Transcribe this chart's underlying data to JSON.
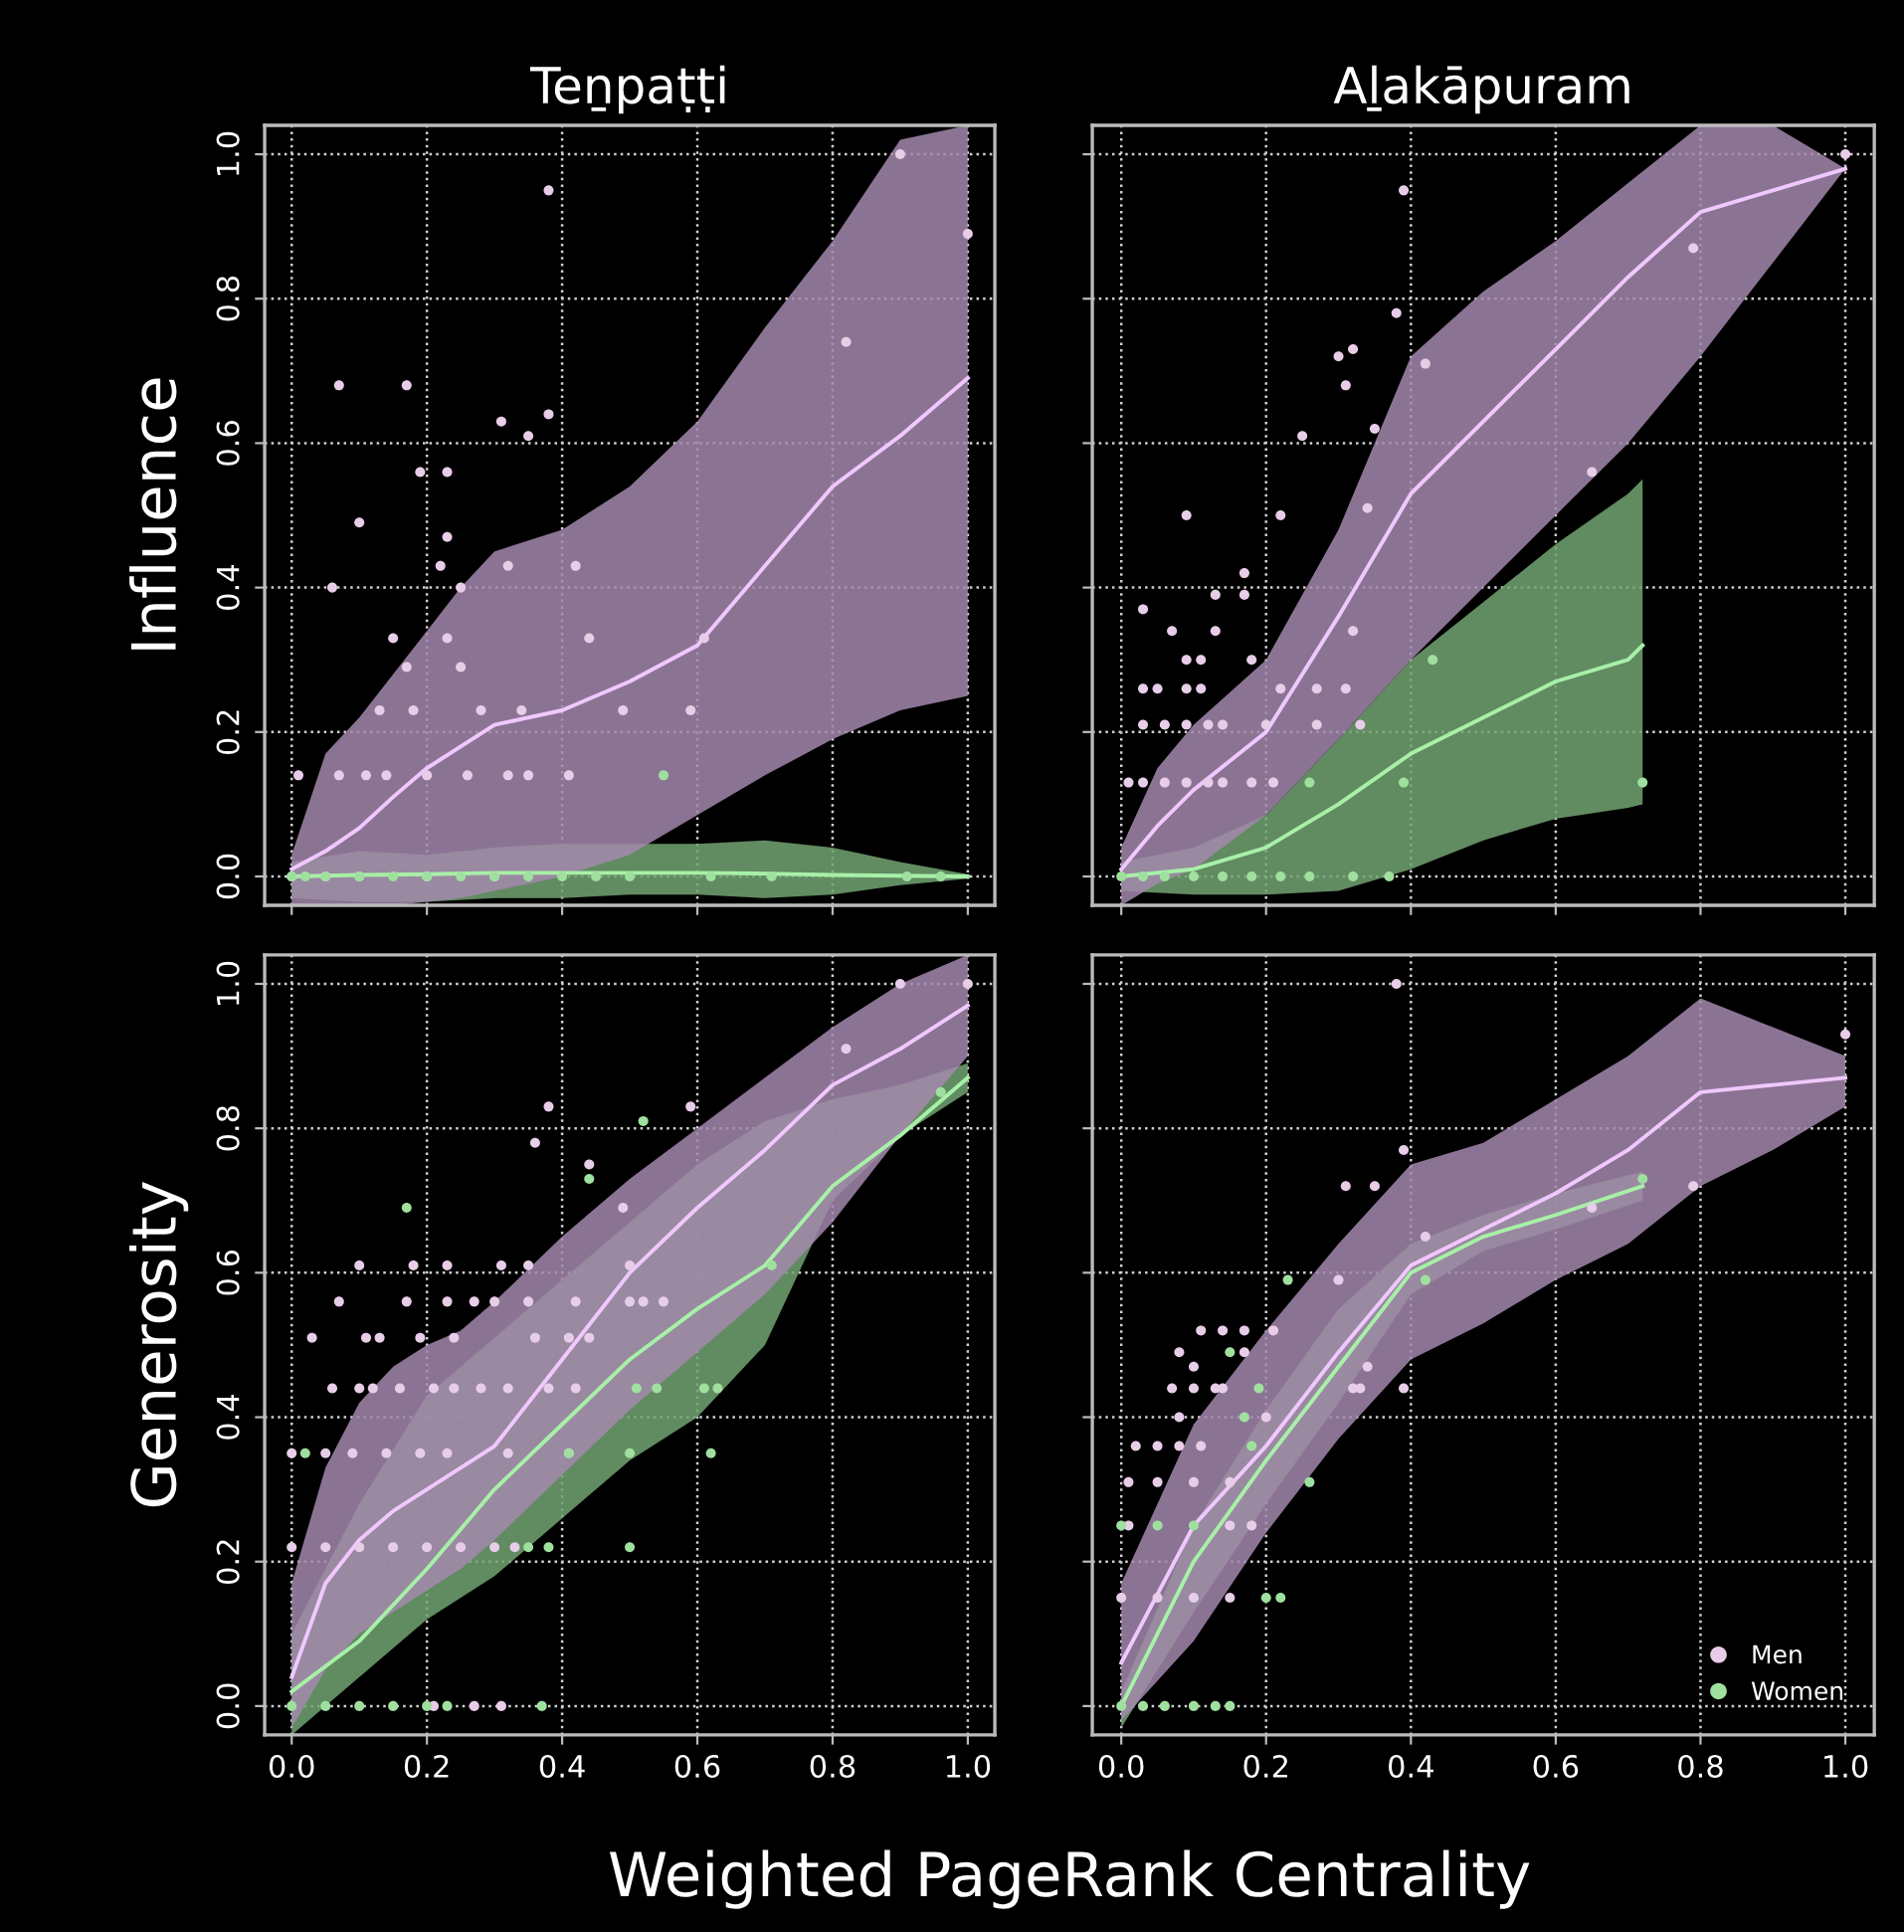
{
  "chart_data": [
    {
      "type": "scatter",
      "title": "Teṉpaṭṭi",
      "ylabel": "Influence",
      "xlim": [
        -0.04,
        1.04
      ],
      "ylim": [
        -0.04,
        1.04
      ],
      "xticks": [
        {
          "value": 0,
          "label": null
        },
        {
          "value": 0.2,
          "label": null
        },
        {
          "value": 0.4,
          "label": null
        },
        {
          "value": 0.6,
          "label": null
        },
        {
          "value": 0.8,
          "label": null
        },
        {
          "value": 1,
          "label": null
        }
      ],
      "yticks": [
        {
          "value": 0,
          "label": "0.0"
        },
        {
          "value": 0.2,
          "label": "0.2"
        },
        {
          "value": 0.4,
          "label": "0.4"
        },
        {
          "value": 0.6,
          "label": "0.6"
        },
        {
          "value": 0.8,
          "label": "0.8"
        },
        {
          "value": 1,
          "label": "1.0"
        }
      ],
      "tick_labels": "y",
      "grid": true,
      "marker": "circle",
      "line_style": "solid",
      "series": [
        {
          "type": "line",
          "marker": "none",
          "color": "#a8f0a8",
          "x": [
            0,
            0.1,
            0.2,
            0.3,
            0.4,
            0.5,
            0.6,
            0.7,
            0.8,
            0.9,
            1.0
          ],
          "values": [
            0,
            0.002,
            0.003,
            0.005,
            0.005,
            0.005,
            0.005,
            0.004,
            0.002,
            0.001,
            0
          ],
          "upper": [
            0.02,
            0.035,
            0.03,
            0.04,
            0.045,
            0.045,
            0.045,
            0.05,
            0.04,
            0.02,
            0.003
          ],
          "lower": [
            -0.03,
            -0.035,
            -0.035,
            -0.03,
            -0.03,
            -0.025,
            -0.025,
            -0.03,
            -0.025,
            -0.012,
            -0.003
          ]
        },
        {
          "type": "line",
          "marker": "none",
          "color": "#f0c8ff",
          "x": [
            0,
            0.05,
            0.1,
            0.15,
            0.2,
            0.25,
            0.3,
            0.4,
            0.5,
            0.6,
            0.7,
            0.8,
            0.9,
            1.0
          ],
          "values": [
            0.01,
            0.035,
            0.067,
            0.11,
            0.15,
            0.18,
            0.21,
            0.23,
            0.27,
            0.32,
            0.43,
            0.54,
            0.61,
            0.69
          ],
          "upper": [
            0.03,
            0.17,
            0.22,
            0.28,
            0.34,
            0.4,
            0.45,
            0.48,
            0.54,
            0.63,
            0.76,
            0.88,
            1.02,
            1.04
          ],
          "lower": [
            -0.04,
            -0.04,
            -0.04,
            -0.04,
            -0.035,
            -0.03,
            -0.02,
            0,
            0.03,
            0.085,
            0.14,
            0.19,
            0.23,
            0.25
          ]
        },
        {
          "color": "#e8cde8",
          "x": [
            0.07,
            0.17,
            0.38,
            0.31,
            0.35,
            0.38,
            0.1,
            0.19,
            0.23,
            0.23,
            0.22,
            0.25,
            0.06,
            0.32,
            0.42,
            0.15,
            0.23,
            0.44,
            0.17,
            0.25,
            0.13,
            0.18,
            0.28,
            0.34,
            0.49,
            0.59,
            0.61,
            0.82,
            0.9,
            1.0,
            0.01,
            0.07,
            0.11,
            0.14,
            0.2,
            0.26,
            0.32,
            0.35,
            0.41,
            0,
            0.05,
            0.1,
            0.2,
            0.3
          ],
          "values": [
            0.68,
            0.68,
            0.95,
            0.63,
            0.61,
            0.64,
            0.49,
            0.56,
            0.56,
            0.47,
            0.43,
            0.4,
            0.4,
            0.43,
            0.43,
            0.33,
            0.33,
            0.33,
            0.29,
            0.29,
            0.23,
            0.23,
            0.23,
            0.23,
            0.23,
            0.23,
            0.33,
            0.74,
            1.0,
            0.89,
            0.14,
            0.14,
            0.14,
            0.14,
            0.14,
            0.14,
            0.14,
            0.14,
            0.14,
            0,
            0,
            0,
            0,
            0
          ]
        },
        {
          "color": "#9fe09f",
          "x": [
            0,
            0.02,
            0.05,
            0.1,
            0.15,
            0.2,
            0.25,
            0.3,
            0.35,
            0.4,
            0.45,
            0.5,
            0.62,
            0.71,
            0.91,
            0.55,
            0.96
          ],
          "values": [
            0,
            0,
            0,
            0,
            0,
            0,
            0,
            0,
            0,
            0,
            0,
            0,
            0,
            0,
            0,
            0.14,
            0
          ]
        }
      ]
    },
    {
      "type": "scatter",
      "title": "Aḻakāpuram",
      "xlim": [
        -0.04,
        1.04
      ],
      "ylim": [
        -0.04,
        1.04
      ],
      "xticks": [
        {
          "value": 0,
          "label": null
        },
        {
          "value": 0.2,
          "label": null
        },
        {
          "value": 0.4,
          "label": null
        },
        {
          "value": 0.6,
          "label": null
        },
        {
          "value": 0.8,
          "label": null
        },
        {
          "value": 1,
          "label": null
        }
      ],
      "yticks": [
        {
          "value": 0,
          "label": null
        },
        {
          "value": 0.2,
          "label": null
        },
        {
          "value": 0.4,
          "label": null
        },
        {
          "value": 0.6,
          "label": null
        },
        {
          "value": 0.8,
          "label": null
        },
        {
          "value": 1,
          "label": null
        }
      ],
      "tick_labels": false,
      "grid": true,
      "marker": "circle",
      "line_style": "solid",
      "series": [
        {
          "type": "line",
          "marker": "none",
          "color": "#a8f0a8",
          "x": [
            0,
            0.1,
            0.2,
            0.3,
            0.4,
            0.5,
            0.6,
            0.7,
            0.72
          ],
          "values": [
            0,
            0.01,
            0.04,
            0.1,
            0.17,
            0.22,
            0.27,
            0.3,
            0.32
          ],
          "upper": [
            0.02,
            0.04,
            0.085,
            0.19,
            0.3,
            0.38,
            0.46,
            0.53,
            0.55
          ],
          "lower": [
            -0.02,
            -0.025,
            -0.025,
            -0.02,
            0.01,
            0.05,
            0.08,
            0.095,
            0.1
          ]
        },
        {
          "type": "line",
          "marker": "none",
          "color": "#f0c8ff",
          "x": [
            0,
            0.05,
            0.1,
            0.2,
            0.3,
            0.4,
            0.5,
            0.6,
            0.7,
            0.8,
            0.9,
            1.0
          ],
          "values": [
            0.01,
            0.07,
            0.12,
            0.2,
            0.36,
            0.53,
            0.63,
            0.73,
            0.83,
            0.92,
            0.95,
            0.98
          ],
          "upper": [
            0.04,
            0.15,
            0.21,
            0.3,
            0.48,
            0.72,
            0.81,
            0.88,
            0.96,
            1.04,
            1.04,
            0.98
          ],
          "lower": [
            -0.04,
            -0.01,
            0.01,
            0.085,
            0.19,
            0.3,
            0.4,
            0.5,
            0.6,
            0.72,
            0.85,
            0.98
          ]
        },
        {
          "color": "#e8cde8",
          "x": [
            0.39,
            0.38,
            0.3,
            0.32,
            0.31,
            0.42,
            0.35,
            0.25,
            0.09,
            0.22,
            0.34,
            0.17,
            0.13,
            0.17,
            0.03,
            0.07,
            0.13,
            0.09,
            0.11,
            0.32,
            0.18,
            0.03,
            0.05,
            0.09,
            0.11,
            0.22,
            0.27,
            0.31,
            0.03,
            0.06,
            0.09,
            0.12,
            0.14,
            0.2,
            0.27,
            0.33,
            0.01,
            0.03,
            0.06,
            0.09,
            0.12,
            0.14,
            0.18,
            0.21,
            1.0,
            0.79,
            0.65
          ],
          "values": [
            0.95,
            0.78,
            0.72,
            0.73,
            0.68,
            0.71,
            0.62,
            0.61,
            0.5,
            0.5,
            0.51,
            0.42,
            0.39,
            0.39,
            0.37,
            0.34,
            0.34,
            0.3,
            0.3,
            0.34,
            0.3,
            0.26,
            0.26,
            0.26,
            0.26,
            0.26,
            0.26,
            0.26,
            0.21,
            0.21,
            0.21,
            0.21,
            0.21,
            0.21,
            0.21,
            0.21,
            0.13,
            0.13,
            0.13,
            0.13,
            0.13,
            0.13,
            0.13,
            0.13,
            1.0,
            0.87,
            0.56
          ]
        },
        {
          "color": "#9fe09f",
          "x": [
            0.43,
            0.39,
            0.72,
            0.26,
            0.32,
            0.37,
            0,
            0.03,
            0.06,
            0.1,
            0.14,
            0.18,
            0.22,
            0.26
          ],
          "values": [
            0.3,
            0.13,
            0.13,
            0.13,
            0,
            0,
            0,
            0,
            0,
            0,
            0,
            0,
            0,
            0
          ]
        }
      ]
    },
    {
      "type": "scatter",
      "ylabel": "Generosity",
      "xlabel": "Weighted PageRank Centrality",
      "xlim": [
        -0.04,
        1.04
      ],
      "ylim": [
        -0.04,
        1.04
      ],
      "xticks": [
        {
          "value": 0,
          "label": "0.0"
        },
        {
          "value": 0.2,
          "label": "0.2"
        },
        {
          "value": 0.4,
          "label": "0.4"
        },
        {
          "value": 0.6,
          "label": "0.6"
        },
        {
          "value": 0.8,
          "label": "0.8"
        },
        {
          "value": 1,
          "label": "1.0"
        }
      ],
      "yticks": [
        {
          "value": 0,
          "label": "0.0"
        },
        {
          "value": 0.2,
          "label": "0.2"
        },
        {
          "value": 0.4,
          "label": "0.4"
        },
        {
          "value": 0.6,
          "label": "0.6"
        },
        {
          "value": 0.8,
          "label": "0.8"
        },
        {
          "value": 1,
          "label": "1.0"
        }
      ],
      "grid": true,
      "marker": "circle",
      "line_style": "solid",
      "series": [
        {
          "type": "line",
          "marker": "none",
          "color": "#a8f0a8",
          "x": [
            0,
            0.1,
            0.2,
            0.3,
            0.4,
            0.5,
            0.6,
            0.7,
            0.8,
            0.9,
            1.0
          ],
          "values": [
            0.02,
            0.09,
            0.19,
            0.3,
            0.39,
            0.48,
            0.55,
            0.61,
            0.72,
            0.79,
            0.87
          ],
          "upper": [
            0.1,
            0.28,
            0.43,
            0.51,
            0.59,
            0.67,
            0.75,
            0.81,
            0.84,
            0.86,
            0.89
          ],
          "lower": [
            -0.04,
            0.04,
            0.12,
            0.18,
            0.26,
            0.34,
            0.4,
            0.5,
            0.7,
            0.79,
            0.85
          ]
        },
        {
          "type": "line",
          "marker": "none",
          "color": "#f0c8ff",
          "x": [
            0,
            0.05,
            0.1,
            0.15,
            0.2,
            0.25,
            0.3,
            0.4,
            0.5,
            0.6,
            0.7,
            0.8,
            0.9,
            1.0
          ],
          "values": [
            0.04,
            0.17,
            0.23,
            0.27,
            0.3,
            0.33,
            0.36,
            0.48,
            0.6,
            0.69,
            0.77,
            0.86,
            0.91,
            0.97
          ],
          "upper": [
            0.17,
            0.33,
            0.42,
            0.47,
            0.5,
            0.52,
            0.56,
            0.65,
            0.73,
            0.8,
            0.87,
            0.94,
            1.0,
            1.04
          ],
          "lower": [
            -0.03,
            0.05,
            0.1,
            0.13,
            0.16,
            0.19,
            0.23,
            0.32,
            0.41,
            0.49,
            0.57,
            0.67,
            0.79,
            0.9
          ]
        },
        {
          "color": "#e8cde8",
          "x": [
            0.38,
            0.59,
            0.36,
            0.44,
            0.49,
            0.82,
            0.9,
            1.0,
            0.1,
            0.18,
            0.23,
            0.31,
            0.35,
            0.5,
            0.07,
            0.17,
            0.23,
            0.27,
            0.3,
            0.35,
            0.42,
            0.5,
            0.52,
            0.55,
            0.03,
            0.11,
            0.13,
            0.19,
            0.24,
            0.36,
            0.41,
            0.44,
            0.06,
            0.1,
            0.12,
            0.16,
            0.21,
            0.24,
            0.28,
            0.32,
            0.38,
            0.42,
            0,
            0.05,
            0.09,
            0.14,
            0.19,
            0.23,
            0.32,
            0.41,
            0,
            0.05,
            0.1,
            0.15,
            0.2,
            0.25,
            0.3,
            0.33,
            0.21,
            0.27,
            0.31
          ],
          "values": [
            0.83,
            0.83,
            0.78,
            0.75,
            0.69,
            0.91,
            1.0,
            1.0,
            0.61,
            0.61,
            0.61,
            0.61,
            0.61,
            0.61,
            0.56,
            0.56,
            0.56,
            0.56,
            0.56,
            0.56,
            0.56,
            0.56,
            0.56,
            0.56,
            0.51,
            0.51,
            0.51,
            0.51,
            0.51,
            0.51,
            0.51,
            0.51,
            0.44,
            0.44,
            0.44,
            0.44,
            0.44,
            0.44,
            0.44,
            0.44,
            0.44,
            0.44,
            0.35,
            0.35,
            0.35,
            0.35,
            0.35,
            0.35,
            0.35,
            0.35,
            0.22,
            0.22,
            0.22,
            0.22,
            0.22,
            0.22,
            0.22,
            0.22,
            0,
            0,
            0
          ]
        },
        {
          "color": "#9fe09f",
          "x": [
            0.17,
            0.52,
            0.44,
            0.71,
            0.96,
            0.51,
            0.54,
            0.61,
            0.63,
            0.5,
            0.62,
            0.41,
            0.02,
            0.5,
            0.35,
            0.38,
            0,
            0.05,
            0.1,
            0.15,
            0.2,
            0.23,
            0.37
          ],
          "values": [
            0.69,
            0.81,
            0.73,
            0.61,
            0.85,
            0.44,
            0.44,
            0.44,
            0.44,
            0.35,
            0.35,
            0.35,
            0.35,
            0.22,
            0.22,
            0.22,
            0,
            0,
            0,
            0,
            0,
            0,
            0
          ]
        }
      ]
    },
    {
      "type": "scatter",
      "xlim": [
        -0.04,
        1.04
      ],
      "ylim": [
        -0.04,
        1.04
      ],
      "xticks": [
        {
          "value": 0,
          "label": "0.0"
        },
        {
          "value": 0.2,
          "label": "0.2"
        },
        {
          "value": 0.4,
          "label": "0.4"
        },
        {
          "value": 0.6,
          "label": "0.6"
        },
        {
          "value": 0.8,
          "label": "0.8"
        },
        {
          "value": 1,
          "label": "1.0"
        }
      ],
      "yticks": [
        {
          "value": 0,
          "label": null
        },
        {
          "value": 0.2,
          "label": null
        },
        {
          "value": 0.4,
          "label": null
        },
        {
          "value": 0.6,
          "label": null
        },
        {
          "value": 0.8,
          "label": null
        },
        {
          "value": 1,
          "label": null
        }
      ],
      "tick_labels": "x",
      "grid": true,
      "marker": "circle",
      "line_style": "solid",
      "legend": "bottom right",
      "series": [
        {
          "type": "line",
          "marker": "none",
          "color": "#a8f0a8",
          "x": [
            0,
            0.1,
            0.2,
            0.3,
            0.4,
            0.5,
            0.6,
            0.72
          ],
          "values": [
            0,
            0.2,
            0.34,
            0.47,
            0.6,
            0.65,
            0.68,
            0.72
          ],
          "upper": [
            0.02,
            0.25,
            0.41,
            0.55,
            0.64,
            0.68,
            0.71,
            0.74
          ],
          "lower": [
            -0.03,
            0.13,
            0.28,
            0.42,
            0.57,
            0.63,
            0.66,
            0.7
          ]
        },
        {
          "type": "line",
          "marker": "none",
          "color": "#f0c8ff",
          "x": [
            0,
            0.1,
            0.2,
            0.3,
            0.4,
            0.5,
            0.6,
            0.7,
            0.8,
            0.9,
            1.0
          ],
          "values": [
            0.06,
            0.25,
            0.36,
            0.49,
            0.61,
            0.66,
            0.71,
            0.77,
            0.85,
            0.86,
            0.87
          ],
          "upper": [
            0.17,
            0.39,
            0.52,
            0.64,
            0.75,
            0.78,
            0.84,
            0.9,
            0.98,
            0.94,
            0.9
          ],
          "lower": [
            -0.02,
            0.09,
            0.24,
            0.37,
            0.48,
            0.53,
            0.59,
            0.64,
            0.72,
            0.77,
            0.83
          ]
        },
        {
          "name": "Men",
          "color": "#e8cde8",
          "x": [
            0.38,
            0.39,
            0.31,
            0.35,
            0.42,
            0.3,
            0.34,
            0.39,
            1.0,
            0.79,
            0.65,
            0.11,
            0.14,
            0.17,
            0.21,
            0.08,
            0.17,
            0.1,
            0.07,
            0.1,
            0.13,
            0.14,
            0.32,
            0.33,
            0.08,
            0.2,
            0.02,
            0.05,
            0.08,
            0.11,
            0.01,
            0.05,
            0.1,
            0.15,
            0.01,
            0.15,
            0.18,
            0,
            0.05,
            0.1,
            0.15
          ],
          "values": [
            1.0,
            0.77,
            0.72,
            0.72,
            0.65,
            0.59,
            0.47,
            0.44,
            0.93,
            0.72,
            0.69,
            0.52,
            0.52,
            0.52,
            0.52,
            0.49,
            0.49,
            0.47,
            0.44,
            0.44,
            0.44,
            0.44,
            0.44,
            0.44,
            0.4,
            0.4,
            0.36,
            0.36,
            0.36,
            0.36,
            0.31,
            0.31,
            0.31,
            0.31,
            0.25,
            0.25,
            0.25,
            0.15,
            0.15,
            0.15,
            0.15
          ]
        },
        {
          "name": "Women",
          "color": "#9fe09f",
          "x": [
            0.23,
            0.15,
            0.42,
            0.72,
            0.19,
            0.17,
            0.18,
            0.26,
            0.0,
            0.05,
            0.1,
            0.2,
            0.22,
            0,
            0.03,
            0.06,
            0.1,
            0.13,
            0.15
          ],
          "values": [
            0.59,
            0.49,
            0.59,
            0.73,
            0.44,
            0.4,
            0.36,
            0.31,
            0.25,
            0.25,
            0.25,
            0.15,
            0.15,
            0,
            0,
            0,
            0,
            0,
            0
          ]
        }
      ]
    }
  ]
}
